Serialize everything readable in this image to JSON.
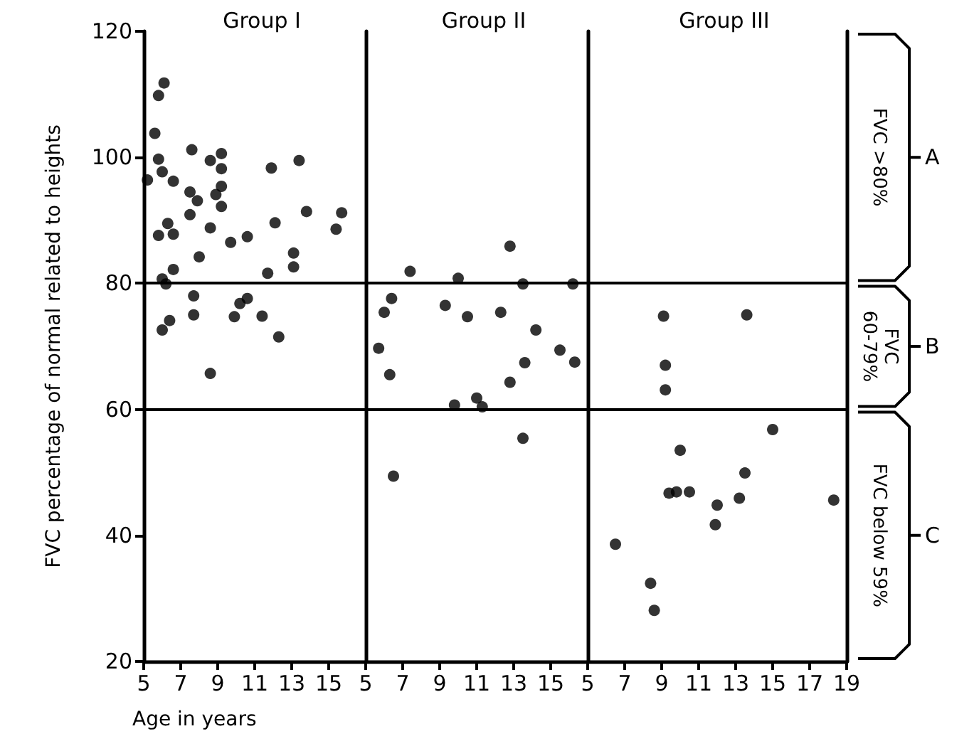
{
  "chart_data": [
    {
      "type": "scatter",
      "title": "Group I",
      "xlabel": "Age in years",
      "ylabel": "FVC percentage of normal related to heights",
      "xlim": [
        5,
        17
      ],
      "xticks": [
        5,
        7,
        9,
        11,
        13,
        15
      ],
      "ylim": [
        20,
        120
      ],
      "yticks": [
        20,
        40,
        60,
        80,
        100,
        120
      ],
      "marker": "circle",
      "series": [
        {
          "color": "#000000",
          "x": [
            6.1,
            5.8,
            5.6,
            5.8,
            6.0,
            5.2,
            6.6,
            7.6,
            7.5,
            7.9,
            7.5,
            6.3,
            5.8,
            6.6,
            8.6,
            9.2,
            9.2,
            9.2,
            8.9,
            9.2,
            8.6,
            8.0,
            9.7,
            10.6,
            11.9,
            13.4,
            12.1,
            13.8,
            15.7,
            15.4,
            13.1,
            13.1,
            11.7,
            6.6,
            6.0,
            6.2,
            7.7,
            7.7,
            6.4,
            6.0,
            9.9,
            10.2,
            10.6,
            11.4,
            12.3,
            8.6
          ],
          "values": [
            111.8,
            109.8,
            103.8,
            99.7,
            97.7,
            96.4,
            96.2,
            101.2,
            94.5,
            93.1,
            90.9,
            89.5,
            87.6,
            87.8,
            99.5,
            100.6,
            98.2,
            95.4,
            94.1,
            92.2,
            88.8,
            84.2,
            86.5,
            87.4,
            98.3,
            99.5,
            89.6,
            91.4,
            91.2,
            88.6,
            84.8,
            82.6,
            81.6,
            82.2,
            80.7,
            79.9,
            78.0,
            75.0,
            74.1,
            72.6,
            74.7,
            76.8,
            77.6,
            74.8,
            71.5,
            65.7
          ]
        }
      ],
      "ref_lines": [
        {
          "axis": "y",
          "value": 80,
          "color": "#000000"
        },
        {
          "axis": "y",
          "value": 60,
          "color": "#000000"
        }
      ]
    },
    {
      "type": "scatter",
      "title": "Group II",
      "xlim": [
        5,
        17
      ],
      "xticks": [
        5,
        7,
        9,
        11,
        13,
        15
      ],
      "ylim": [
        20,
        120
      ],
      "tick_labels": "x",
      "marker": "circle",
      "series": [
        {
          "color": "#000000",
          "x": [
            7.4,
            10.0,
            12.8,
            13.5,
            16.2,
            6.4,
            6.0,
            9.3,
            10.5,
            12.3,
            14.2,
            5.7,
            15.5,
            16.3,
            13.6,
            6.3,
            12.8,
            9.8,
            11.0,
            11.3,
            13.5,
            6.5
          ],
          "values": [
            81.9,
            80.8,
            85.9,
            79.9,
            79.9,
            77.6,
            75.4,
            76.5,
            74.7,
            75.4,
            72.6,
            69.7,
            69.4,
            67.5,
            67.4,
            65.5,
            64.3,
            60.7,
            61.8,
            60.4,
            55.4,
            49.4
          ]
        }
      ],
      "ref_lines": [
        {
          "axis": "y",
          "value": 80,
          "color": "#000000"
        },
        {
          "axis": "y",
          "value": 60,
          "color": "#000000"
        }
      ]
    },
    {
      "type": "scatter",
      "title": "Group III",
      "xlim": [
        5,
        19
      ],
      "xticks": [
        5,
        7,
        9,
        11,
        13,
        15,
        17,
        19
      ],
      "ylim": [
        20,
        120
      ],
      "tick_labels": "x",
      "marker": "circle",
      "series": [
        {
          "color": "#000000",
          "x": [
            9.1,
            13.6,
            9.2,
            9.2,
            15.0,
            10.0,
            9.4,
            9.8,
            10.5,
            13.5,
            13.2,
            12.0,
            11.9,
            18.3,
            6.5,
            8.4,
            8.6
          ],
          "values": [
            74.8,
            75.0,
            67.0,
            63.1,
            56.8,
            53.5,
            46.7,
            46.9,
            46.9,
            49.9,
            45.9,
            44.8,
            41.7,
            45.6,
            38.6,
            32.4,
            28.1
          ]
        }
      ],
      "ref_lines": [
        {
          "axis": "y",
          "value": 80,
          "color": "#000000"
        },
        {
          "axis": "y",
          "value": 60,
          "color": "#000000"
        }
      ],
      "annotations": [
        "FVC >80%",
        "A",
        "FVC 60-79%",
        "B",
        "FVC below 59%",
        "C"
      ]
    }
  ]
}
